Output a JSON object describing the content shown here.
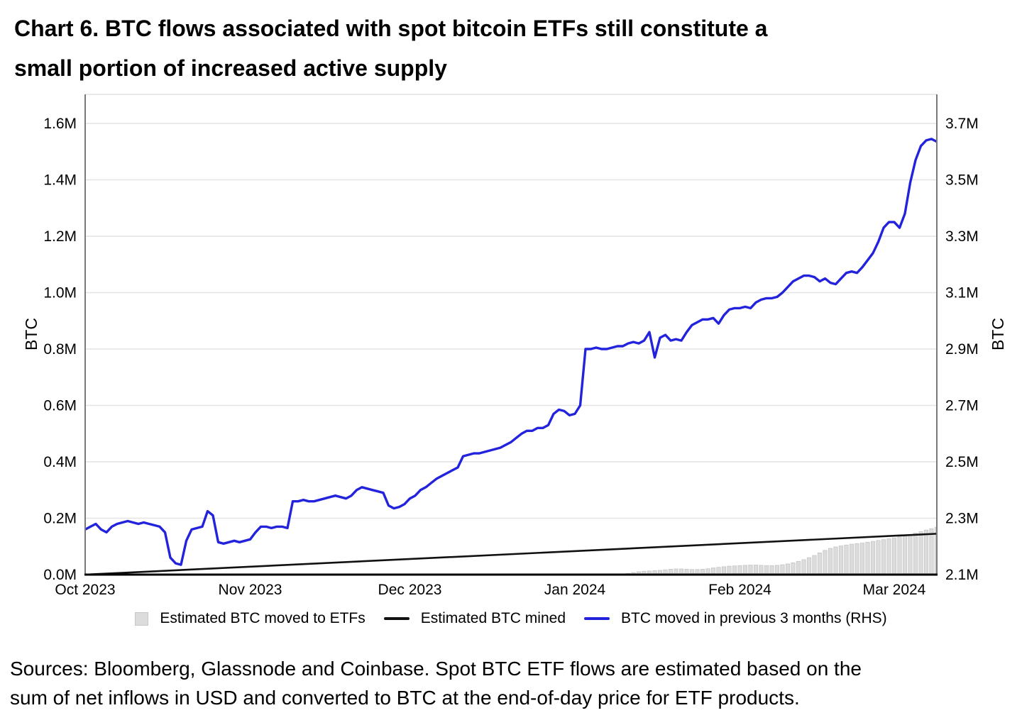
{
  "title": {
    "line1": "Chart 6. BTC flows associated with spot bitcoin ETFs still constitute a",
    "line2": "small portion of increased active supply"
  },
  "sources": {
    "line1": "Sources: Bloomberg, Glassnode and Coinbase. Spot BTC ETF flows are estimated based on the",
    "line2": "sum of net inflows in USD and converted to BTC at the end-of-day price for ETF products."
  },
  "legend": {
    "items": [
      {
        "label": "Estimated BTC moved to ETFs",
        "swatch": "gray-square"
      },
      {
        "label": "Estimated BTC mined",
        "swatch": "black-line"
      },
      {
        "label": "BTC moved in previous 3 months (RHS)",
        "swatch": "blue-line"
      }
    ]
  },
  "colors": {
    "background": "#ffffff",
    "text": "#000000",
    "grid": "#e4e4e4",
    "spine": "#7a7a7a",
    "axis_bottom": "#000000",
    "bar_fill": "#dcdcdc",
    "bar_edge": "#c6c6c6",
    "mined_line": "#111111",
    "btc_moved_line": "#2323dd"
  },
  "chart_data": {
    "type": "bar+line dual-axis time series",
    "title": "Chart 6. BTC flows associated with spot bitcoin ETFs still constitute a small portion of increased active supply",
    "grid": "horizontal only",
    "legend_position": "bottom center",
    "x_axis": {
      "start_date": "2023-10-01",
      "domain_days": [
        0,
        160
      ],
      "tick_days": [
        0,
        31,
        61,
        92,
        123,
        152
      ],
      "tick_labels": [
        "Oct 2023",
        "Nov 2023",
        "Dec 2023",
        "Jan 2024",
        "Feb 2024",
        "Mar 2024"
      ]
    },
    "left_axis": {
      "label": "BTC",
      "units": "million BTC",
      "range": [
        0.0,
        1.6
      ],
      "tick_values": [
        0.0,
        0.2,
        0.4,
        0.6,
        0.8,
        1.0,
        1.2,
        1.4,
        1.6
      ],
      "tick_labels": [
        "0.0M",
        "0.2M",
        "0.4M",
        "0.6M",
        "0.8M",
        "1.0M",
        "1.2M",
        "1.4M",
        "1.6M"
      ]
    },
    "right_axis": {
      "label": "BTC",
      "units": "million BTC",
      "range": [
        2.1,
        3.7
      ],
      "tick_values": [
        2.1,
        2.3,
        2.5,
        2.7,
        2.9,
        3.1,
        3.3,
        3.5,
        3.7
      ],
      "tick_labels": [
        "2.1M",
        "2.3M",
        "2.5M",
        "2.7M",
        "2.9M",
        "3.1M",
        "3.3M",
        "3.5M",
        "3.7M"
      ]
    },
    "series": [
      {
        "name": "Estimated BTC moved to ETFs",
        "type": "bar",
        "axis": "left",
        "start_day": 102,
        "values": [
          0.004,
          0.007,
          0.01,
          0.012,
          0.013,
          0.014,
          0.015,
          0.017,
          0.019,
          0.02,
          0.02,
          0.019,
          0.018,
          0.018,
          0.019,
          0.021,
          0.024,
          0.026,
          0.028,
          0.03,
          0.031,
          0.032,
          0.033,
          0.034,
          0.034,
          0.033,
          0.032,
          0.032,
          0.033,
          0.035,
          0.038,
          0.042,
          0.047,
          0.053,
          0.06,
          0.068,
          0.077,
          0.086,
          0.093,
          0.098,
          0.102,
          0.105,
          0.108,
          0.11,
          0.112,
          0.115,
          0.118,
          0.121,
          0.124,
          0.127,
          0.13,
          0.134,
          0.138,
          0.142,
          0.147,
          0.152,
          0.158,
          0.163,
          0.168
        ]
      },
      {
        "name": "Estimated BTC mined",
        "type": "line",
        "axis": "left",
        "points": [
          [
            0,
            0.0
          ],
          [
            160,
            0.145
          ]
        ]
      },
      {
        "name": "BTC moved in previous 3 months (RHS)",
        "type": "line",
        "axis": "right",
        "start_day": 0,
        "values": [
          2.26,
          2.27,
          2.28,
          2.26,
          2.25,
          2.27,
          2.28,
          2.285,
          2.29,
          2.285,
          2.28,
          2.285,
          2.28,
          2.275,
          2.27,
          2.25,
          2.16,
          2.14,
          2.135,
          2.22,
          2.26,
          2.265,
          2.27,
          2.325,
          2.31,
          2.215,
          2.21,
          2.215,
          2.22,
          2.215,
          2.22,
          2.225,
          2.25,
          2.27,
          2.27,
          2.265,
          2.27,
          2.27,
          2.265,
          2.36,
          2.36,
          2.365,
          2.36,
          2.36,
          2.365,
          2.37,
          2.375,
          2.38,
          2.375,
          2.37,
          2.38,
          2.4,
          2.41,
          2.405,
          2.4,
          2.395,
          2.39,
          2.345,
          2.335,
          2.34,
          2.35,
          2.37,
          2.38,
          2.4,
          2.41,
          2.425,
          2.44,
          2.45,
          2.46,
          2.47,
          2.48,
          2.52,
          2.525,
          2.53,
          2.53,
          2.535,
          2.54,
          2.545,
          2.55,
          2.56,
          2.57,
          2.585,
          2.6,
          2.61,
          2.61,
          2.62,
          2.62,
          2.63,
          2.67,
          2.685,
          2.68,
          2.665,
          2.67,
          2.7,
          2.9,
          2.9,
          2.905,
          2.9,
          2.9,
          2.905,
          2.91,
          2.91,
          2.92,
          2.925,
          2.92,
          2.93,
          2.96,
          2.87,
          2.94,
          2.95,
          2.93,
          2.935,
          2.93,
          2.96,
          2.985,
          2.995,
          3.005,
          3.005,
          3.01,
          2.99,
          3.02,
          3.04,
          3.045,
          3.045,
          3.05,
          3.045,
          3.065,
          3.075,
          3.08,
          3.08,
          3.085,
          3.1,
          3.12,
          3.14,
          3.15,
          3.16,
          3.16,
          3.155,
          3.14,
          3.15,
          3.135,
          3.13,
          3.15,
          3.17,
          3.175,
          3.17,
          3.19,
          3.215,
          3.24,
          3.28,
          3.33,
          3.35,
          3.35,
          3.33,
          3.38,
          3.49,
          3.57,
          3.62,
          3.64,
          3.645,
          3.635
        ]
      }
    ]
  }
}
